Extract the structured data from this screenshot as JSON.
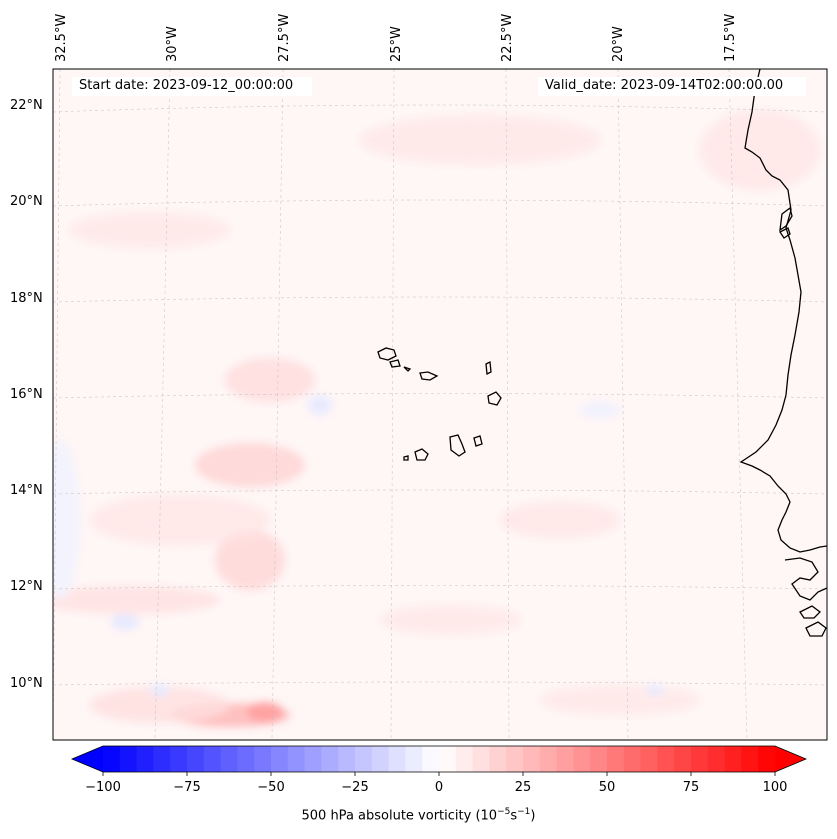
{
  "map": {
    "field": "500 hPa absolute vorticity",
    "start_date": "Start date: 2023-09-12_00:00:00",
    "valid_date": "Valid_date: 2023-09-14T02:00:00.00",
    "lon_ticks": [
      "32.5°W",
      "30°W",
      "27.5°W",
      "25°W",
      "22.5°W",
      "20°W",
      "17.5°W"
    ],
    "lat_ticks": [
      "22°N",
      "20°N",
      "18°N",
      "16°N",
      "14°N",
      "12°N",
      "10°N"
    ],
    "colors": {
      "negative": "#0000ff",
      "neutral": "#ffffff",
      "positive": "#ff0000",
      "coastline": "#000000"
    }
  },
  "colorbar": {
    "min": -100,
    "max": 100,
    "ticks": [
      "−100",
      "−75",
      "−50",
      "−25",
      "0",
      "25",
      "50",
      "75",
      "100"
    ],
    "label_main": "500 hPa absolute vorticity (10",
    "label_exp1": "−5",
    "label_mid": "s",
    "label_exp2": "−1",
    "label_end": ")"
  }
}
